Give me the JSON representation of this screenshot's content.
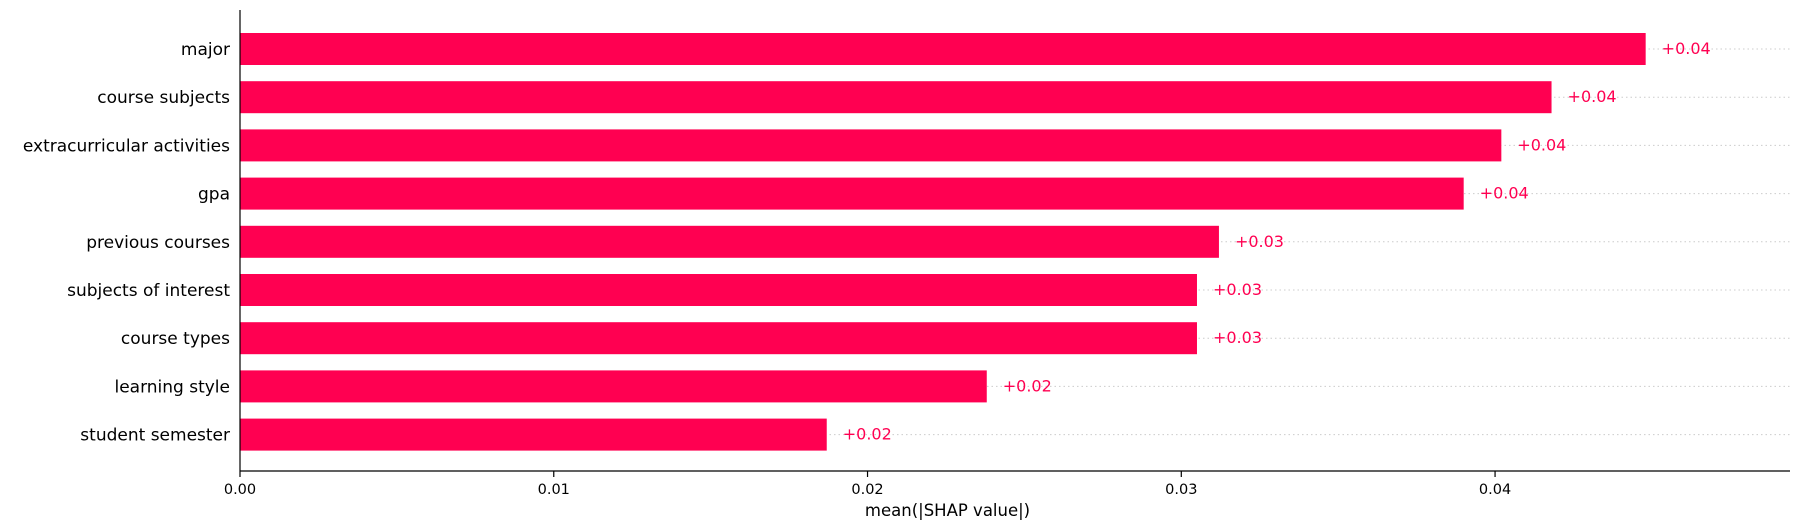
{
  "chart_data": {
    "type": "bar",
    "orientation": "horizontal",
    "categories": [
      "major",
      "course subjects",
      "extracurricular activities",
      "gpa",
      "previous courses",
      "subjects of interest",
      "course types",
      "learning style",
      "student semester"
    ],
    "values": [
      0.0448,
      0.0418,
      0.0402,
      0.039,
      0.0312,
      0.0305,
      0.0305,
      0.0238,
      0.0187
    ],
    "value_labels": [
      "+0.04",
      "+0.04",
      "+0.04",
      "+0.04",
      "+0.03",
      "+0.03",
      "+0.03",
      "+0.02",
      "+0.02"
    ],
    "xlabel": "mean(|SHAP value|)",
    "ylabel": "",
    "title": "",
    "xlim": [
      0,
      0.0494
    ],
    "xticks": [
      0.0,
      0.01,
      0.02,
      0.03,
      0.04
    ],
    "xtick_labels": [
      "0.00",
      "0.01",
      "0.02",
      "0.03",
      "0.04"
    ],
    "grid": "horizontal dotted guide lines",
    "legend": "none",
    "colors": {
      "bar": "#ff0051",
      "value_label": "#ff0051",
      "axis": "#000000",
      "grid": "#cccccc"
    }
  }
}
